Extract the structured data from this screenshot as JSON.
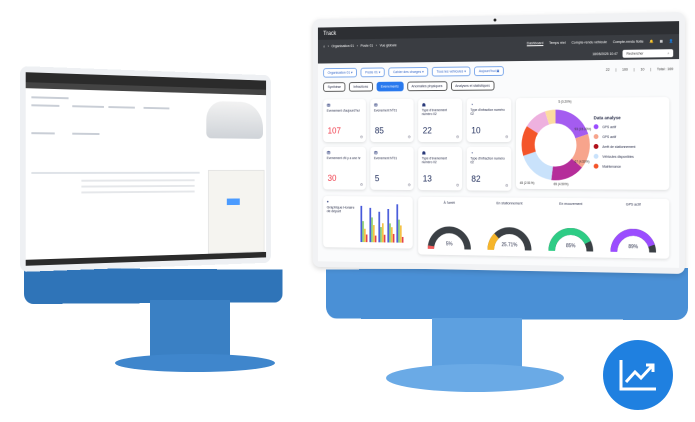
{
  "app": {
    "logo": "Track"
  },
  "breadcrumb": [
    "Organisation 01",
    "Poste 01",
    "Vue globale"
  ],
  "nav": [
    "Dashboard",
    "Temps réel",
    "Compte-rendu véhicule",
    "Compte-rendu flotte"
  ],
  "datetime": "18/05/2025 10:47",
  "search": {
    "placeholder": "Rechercher"
  },
  "filters": [
    "Organisation 01",
    "Poste 01",
    "Cahier des charges",
    "Tous les véhicules",
    "Aujourd'hui"
  ],
  "stats": [
    "22",
    "100",
    "10",
    "Total : 169"
  ],
  "tabs": [
    {
      "label": "Synthèse"
    },
    {
      "label": "Infractions"
    },
    {
      "label": "Evenements",
      "active": true
    },
    {
      "label": "Anomalies physiques"
    },
    {
      "label": "Analyses et statistiques"
    }
  ],
  "cards": [
    {
      "label": "Evenement d'aujourd'hui",
      "value": "107",
      "alert": true
    },
    {
      "label": "Evenement N°01",
      "value": "85"
    },
    {
      "label": "Type d'évenement numéro 02",
      "value": "22"
    },
    {
      "label": "Type d'infraction numéro 02",
      "value": "10"
    },
    {
      "label": "Evenement d'il y a une hr",
      "value": "30",
      "alert": true
    },
    {
      "label": "Evenement N°01",
      "value": "5"
    },
    {
      "label": "Type d'évenement numéro 02",
      "value": "13"
    },
    {
      "label": "Type d'infraction numéro 02",
      "value": "82"
    }
  ],
  "donut": {
    "title": "Data analyse",
    "labels": [
      "5 (0.20%)",
      "93 (15.33%)",
      "67 (4.50%)",
      "65 (4.50%)",
      "45 (2.51%)"
    ],
    "legend": [
      {
        "label": "GPS actif",
        "color": "#9b4dff"
      },
      {
        "label": "GPS actif",
        "color": "#f7a48c"
      },
      {
        "label": "Arrêt de stationnement",
        "color": "#b0101a"
      },
      {
        "label": "Véhicules disponibles",
        "color": "#c9e2fb"
      },
      {
        "label": "Maintenance",
        "color": "#f4552a"
      }
    ],
    "segments": [
      {
        "value": 20,
        "color": "#a45cf0"
      },
      {
        "value": 16,
        "color": "#f7a48c"
      },
      {
        "value": 16,
        "color": "#b52d9a"
      },
      {
        "value": 18,
        "color": "#c9e2fb"
      },
      {
        "value": 14,
        "color": "#f4552a"
      },
      {
        "value": 11,
        "color": "#eeb1df"
      },
      {
        "value": 5,
        "color": "#fcdca0"
      }
    ]
  },
  "bar_chart": {
    "title": "Graphique Horaire de départ"
  },
  "gauges": [
    {
      "label": "À l'arrêt",
      "value": "5%",
      "fraction": 0.05,
      "color": "#f25c5c"
    },
    {
      "label": "En stationnement",
      "value": "25.71%",
      "fraction": 0.2571,
      "color": "#f6b52a"
    },
    {
      "label": "En mouvement",
      "value": "85%",
      "fraction": 0.85,
      "color": "#2ecc85"
    },
    {
      "label": "GPS actif",
      "value": "89%",
      "fraction": 0.89,
      "color": "#9b4dff"
    }
  ]
}
